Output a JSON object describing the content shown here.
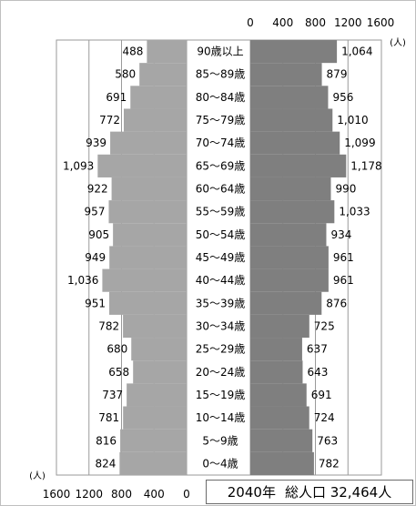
{
  "chart_data": {
    "type": "bar",
    "title": "",
    "caption": {
      "year": "2040年",
      "total": "総人口 32,464人"
    },
    "unit_label": "(人)",
    "categories": [
      "0〜4歳",
      "5〜9歳",
      "10〜14歳",
      "15〜19歳",
      "20〜24歳",
      "25〜29歳",
      "30〜34歳",
      "35〜39歳",
      "40〜44歳",
      "45〜49歳",
      "50〜54歳",
      "55〜59歳",
      "60〜64歳",
      "65〜69歳",
      "70〜74歳",
      "75〜79歳",
      "80〜84歳",
      "85〜89歳",
      "90歳以上"
    ],
    "series": [
      {
        "side": "left",
        "color": "#a6a6a6",
        "values": [
          824,
          816,
          781,
          737,
          658,
          680,
          782,
          951,
          1036,
          949,
          905,
          957,
          922,
          1093,
          939,
          772,
          691,
          580,
          488
        ],
        "labels": [
          "824",
          "816",
          "781",
          "737",
          "658",
          "680",
          "782",
          "951",
          "1,036",
          "949",
          "905",
          "957",
          "922",
          "1,093",
          "939",
          "772",
          "691",
          "580",
          "488"
        ]
      },
      {
        "side": "right",
        "color": "#7f7f7f",
        "values": [
          782,
          763,
          724,
          691,
          643,
          637,
          725,
          876,
          961,
          961,
          934,
          1033,
          990,
          1178,
          1099,
          1010,
          956,
          879,
          1064
        ],
        "labels": [
          "782",
          "763",
          "724",
          "691",
          "643",
          "637",
          "725",
          "876",
          "961",
          "961",
          "934",
          "1,033",
          "990",
          "1,178",
          "1,099",
          "1,010",
          "956",
          "879",
          "1,064"
        ]
      }
    ],
    "x_axis": {
      "left_ticks": [
        "1600",
        "1200",
        "800",
        "400",
        "0"
      ],
      "right_ticks": [
        "0",
        "400",
        "800",
        "1200",
        "1600"
      ],
      "xlim": [
        0,
        1600
      ]
    },
    "grid": true
  }
}
